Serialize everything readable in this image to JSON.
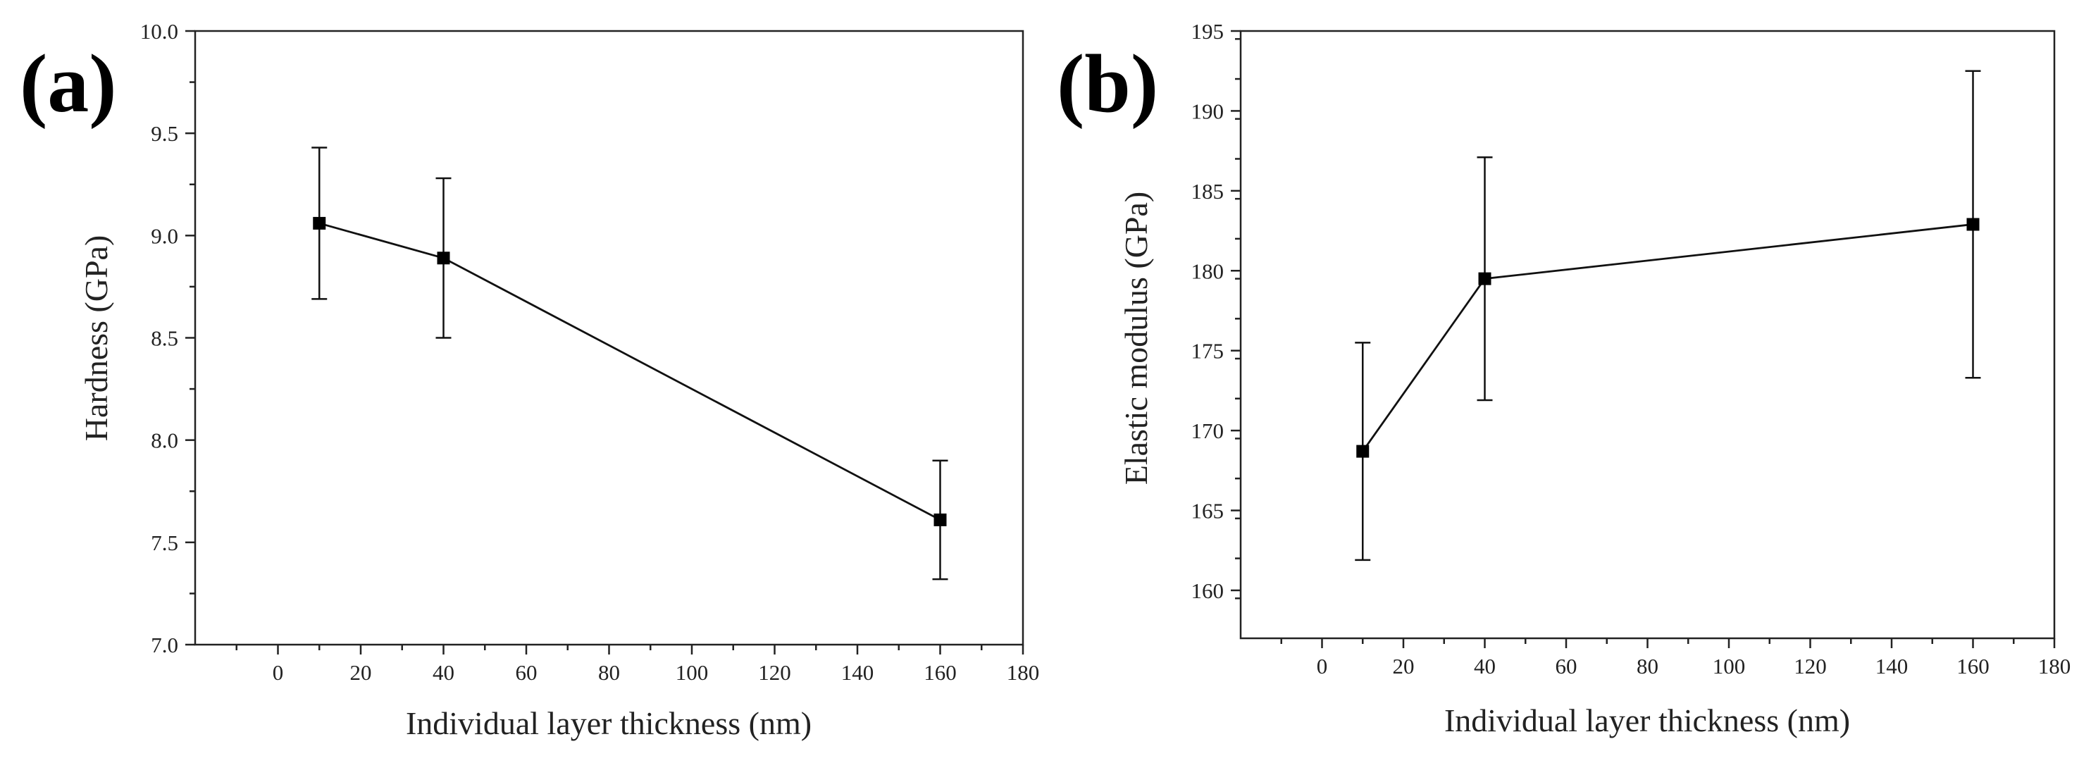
{
  "chart_data": [
    {
      "type": "line",
      "panel_label": "(a)",
      "title": "",
      "xlabel": "Individual layer thickness (nm)",
      "ylabel": "Hardness (GPa)",
      "xlim": [
        -20,
        180
      ],
      "ylim": [
        7.0,
        10.0
      ],
      "x_ticks": [
        0,
        20,
        40,
        60,
        80,
        100,
        120,
        140,
        160,
        180
      ],
      "y_ticks": [
        7.0,
        7.5,
        8.0,
        8.5,
        9.0,
        9.5,
        10.0
      ],
      "y_tick_labels": [
        "7.0",
        "7.5",
        "8.0",
        "8.5",
        "9.0",
        "9.5",
        "10.0"
      ],
      "x_minor_step": 10,
      "y_minor_step": 0.25,
      "grid": false,
      "series": [
        {
          "name": "Hardness",
          "x": [
            10,
            40,
            160
          ],
          "y": [
            9.06,
            8.89,
            7.61
          ],
          "err_low": [
            8.69,
            8.5,
            7.32
          ],
          "err_high": [
            9.43,
            9.28,
            7.9
          ]
        }
      ]
    },
    {
      "type": "line",
      "panel_label": "(b)",
      "title": "",
      "xlabel": "Individual layer thickness (nm)",
      "ylabel": "Elastic modulus (GPa)",
      "xlim": [
        -20,
        180
      ],
      "ylim": [
        157,
        195
      ],
      "x_ticks": [
        0,
        20,
        40,
        60,
        80,
        100,
        120,
        140,
        160,
        180
      ],
      "y_ticks": [
        160,
        165,
        170,
        175,
        180,
        185,
        190,
        195
      ],
      "y_tick_labels": [
        "160",
        "165",
        "170",
        "175",
        "180",
        "185",
        "190",
        "195"
      ],
      "x_minor_step": 10,
      "y_minor_step": 2.5,
      "grid": false,
      "series": [
        {
          "name": "Elastic modulus",
          "x": [
            10,
            40,
            160
          ],
          "y": [
            168.7,
            179.5,
            182.9
          ],
          "err_low": [
            161.9,
            171.9,
            173.3
          ],
          "err_high": [
            175.5,
            187.1,
            192.5
          ]
        }
      ]
    }
  ]
}
